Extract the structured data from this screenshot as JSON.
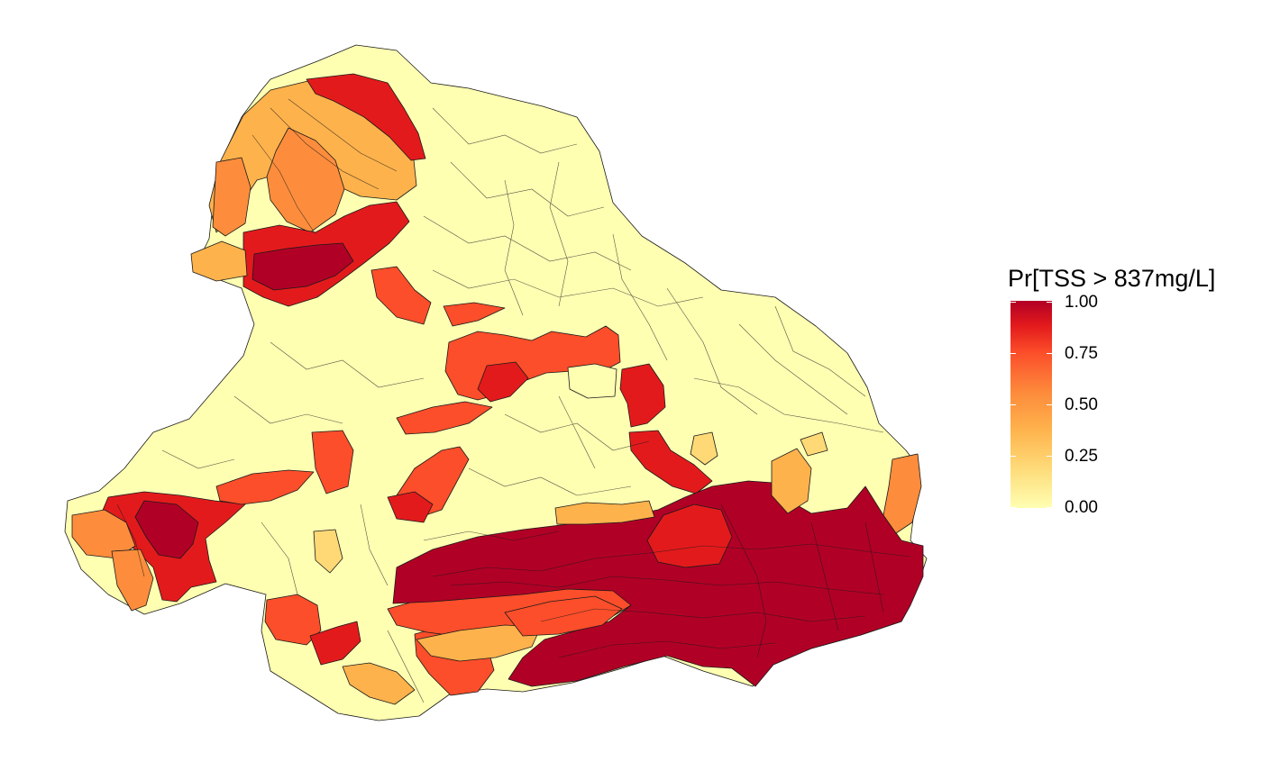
{
  "legend": {
    "title": "Pr[TSS > 837mg/L]",
    "labels": [
      "1.00",
      "0.75",
      "0.50",
      "0.25",
      "0.00"
    ],
    "colors": [
      "#ffffb2",
      "#fed976",
      "#feb24c",
      "#fd8d3c",
      "#fc4e2a",
      "#e31a1c",
      "#b10026"
    ]
  }
}
